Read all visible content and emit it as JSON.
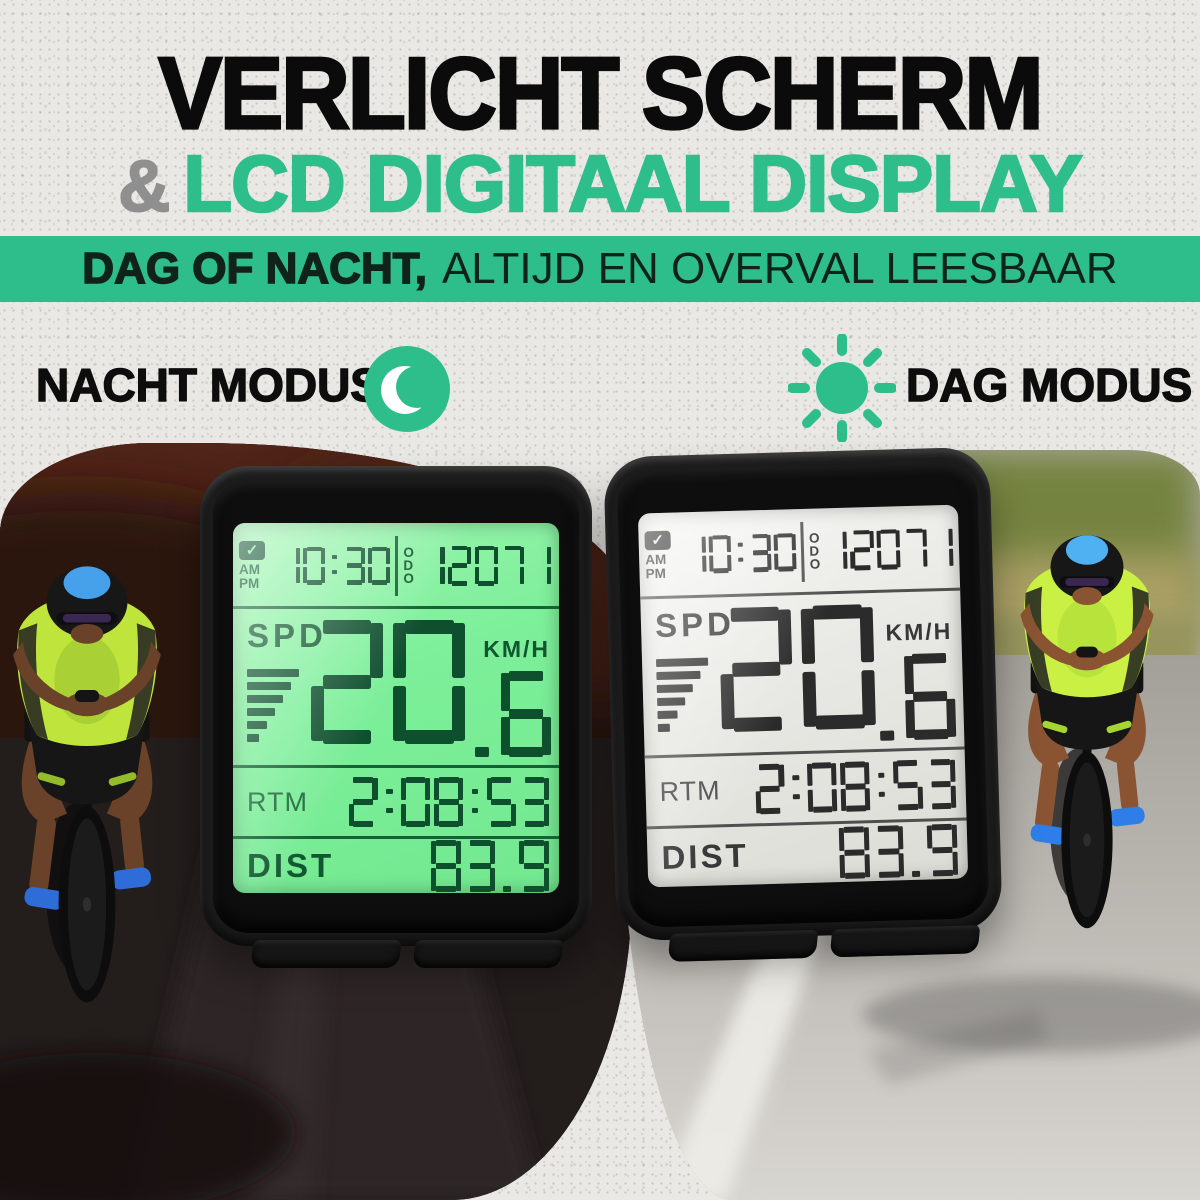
{
  "header": {
    "title": "VERLICHT SCHERM",
    "ampersand": "&",
    "subtitle": "LCD DIGITAAL DISPLAY"
  },
  "banner": {
    "bold": "DAG OF NACHT,",
    "regular": "ALTIJD EN OVERVAL LEESBAAR"
  },
  "modes": {
    "night": "NACHT MODUS",
    "day": "DAG MODUS"
  },
  "device": {
    "check": "✓",
    "am": "AM",
    "pm": "PM",
    "time": "10:30",
    "odo_label": "ODO",
    "odometer": "12071",
    "spd_label": "SPD",
    "speed": "20",
    "speed_fraction": ".6",
    "speed_unit": "KM/H",
    "rtm_label": "RTM",
    "ride_time": "2:08:53",
    "dist_label": "DIST",
    "distance": "83.9"
  },
  "colors": {
    "accent": "#2EBE8C",
    "title_text": "#0B0B0B",
    "banner_text": "#10231B",
    "lcd_night_bg": "#7DEF9A",
    "lcd_night_segment": "#0E4F2E",
    "lcd_day_bg": "#E9E9E5",
    "lcd_day_segment": "#2B2B2B"
  }
}
